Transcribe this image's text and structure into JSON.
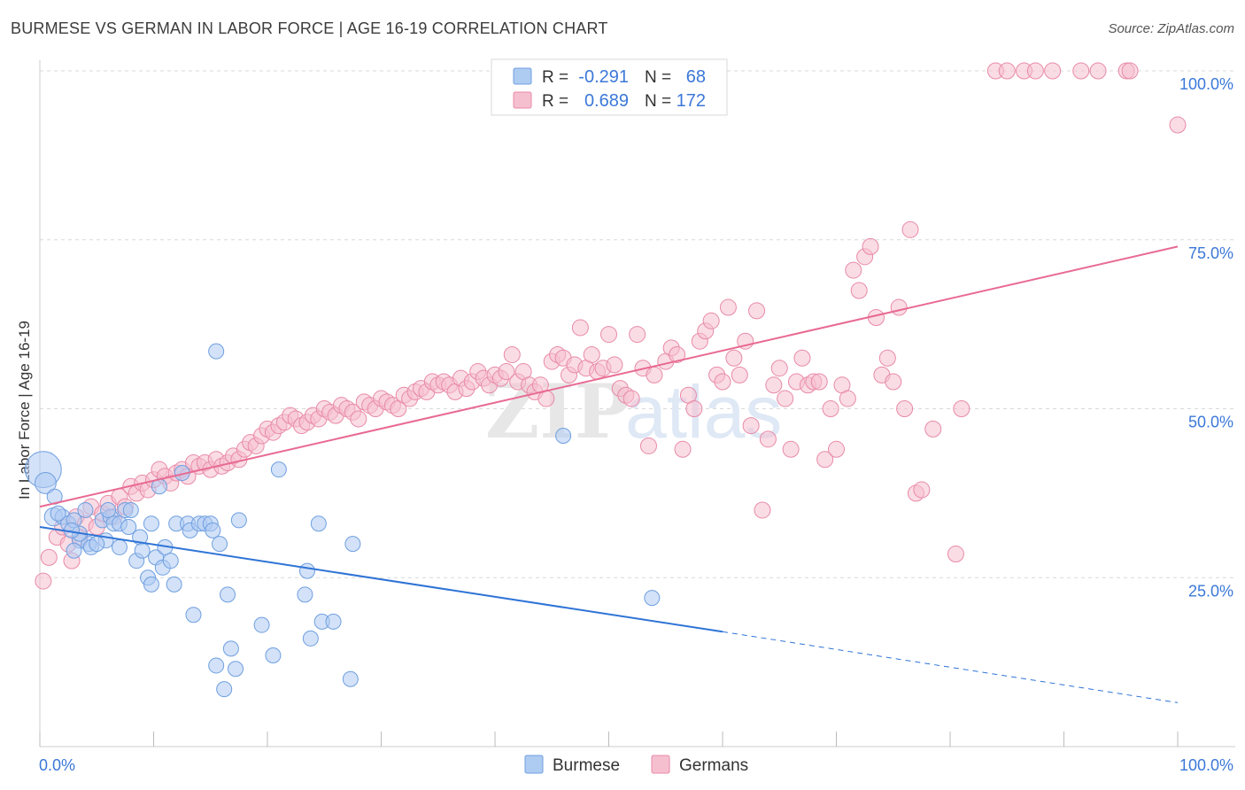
{
  "title": "BURMESE VS GERMAN IN LABOR FORCE | AGE 16-19 CORRELATION CHART",
  "source": "Source: ZipAtlas.com",
  "watermark": "ZIPatlas",
  "colors": {
    "blue_fill": "#aecbf2",
    "blue_stroke": "#6f9fe0",
    "blue_line": "#2f74d6",
    "pink_fill": "#f6bfd0",
    "pink_stroke": "#e88aa8",
    "pink_line": "#e86a92",
    "value_text": "#3b78d8",
    "grid": "#d9d9d9"
  },
  "legend": {
    "rows": [
      {
        "r_label": "R =",
        "r_value": "-0.291",
        "n_label": "N =",
        "n_value": "68"
      },
      {
        "r_label": "R =",
        "r_value": "0.689",
        "n_label": "N =",
        "n_value": "172"
      }
    ]
  },
  "bottom_legend": [
    "Burmese",
    "Germans"
  ],
  "chart_data": {
    "type": "scatter",
    "title": "BURMESE VS GERMAN IN LABOR FORCE | AGE 16-19 CORRELATION CHART",
    "xlabel": "",
    "ylabel": "In Labor Force | Age 16-19",
    "xlim": [
      0,
      100
    ],
    "ylim": [
      0,
      103
    ],
    "x_tick_labels": [
      "0.0%",
      "100.0%"
    ],
    "y_tick_labels": [
      "25.0%",
      "50.0%",
      "75.0%",
      "100.0%"
    ],
    "y_ticks": [
      25,
      50,
      75,
      100
    ],
    "grid": true,
    "legend_position": "top-center",
    "series": [
      {
        "name": "Burmese",
        "r": -0.291,
        "n": 68,
        "trend": {
          "x0": 0,
          "y0": 32.5,
          "x1": 60,
          "y1": 17.0,
          "dashed_to": {
            "x": 100,
            "y": 6.5
          }
        },
        "points": [
          [
            0.3,
            41.0,
            2.4
          ],
          [
            0.5,
            39.0,
            1.4
          ],
          [
            1.3,
            37.0,
            1.0
          ],
          [
            1.2,
            34.0,
            1.2
          ],
          [
            2.0,
            34.0,
            1.0
          ],
          [
            2.5,
            33.0,
            1.0
          ],
          [
            3.0,
            33.5,
            1.0
          ],
          [
            3.5,
            30.5,
            1.0
          ],
          [
            4.0,
            35.0,
            1.0
          ],
          [
            4.3,
            30.0,
            1.0
          ],
          [
            3.0,
            29.0,
            1.0
          ],
          [
            4.5,
            29.5,
            1.0
          ],
          [
            5.5,
            33.5,
            1.0
          ],
          [
            5.8,
            30.5,
            1.0
          ],
          [
            6.2,
            34.0,
            1.0
          ],
          [
            6.5,
            33.0,
            1.0
          ],
          [
            7.0,
            33.0,
            1.0
          ],
          [
            7.0,
            29.5,
            1.0
          ],
          [
            7.5,
            35.0,
            1.0
          ],
          [
            8.5,
            27.5,
            1.0
          ],
          [
            8.8,
            31.0,
            1.0
          ],
          [
            9.0,
            29.0,
            1.0
          ],
          [
            9.5,
            25.0,
            1.0
          ],
          [
            9.8,
            24.0,
            1.0
          ],
          [
            10.2,
            28.0,
            1.0
          ],
          [
            10.5,
            38.5,
            1.0
          ],
          [
            10.8,
            26.5,
            1.0
          ],
          [
            11.0,
            29.5,
            1.0
          ],
          [
            11.5,
            27.5,
            1.0
          ],
          [
            11.8,
            24.0,
            1.0
          ],
          [
            12.0,
            33.0,
            1.0
          ],
          [
            12.5,
            40.5,
            1.0
          ],
          [
            13.0,
            33.0,
            1.0
          ],
          [
            13.2,
            32.0,
            1.0
          ],
          [
            13.5,
            19.5,
            1.0
          ],
          [
            14.0,
            33.0,
            1.0
          ],
          [
            14.5,
            33.0,
            1.0
          ],
          [
            15.0,
            33.0,
            1.0
          ],
          [
            15.2,
            32.0,
            1.0
          ],
          [
            15.5,
            58.5,
            1.0
          ],
          [
            15.5,
            12.0,
            1.0
          ],
          [
            15.8,
            30.0,
            1.0
          ],
          [
            16.2,
            8.5,
            1.0
          ],
          [
            16.5,
            22.5,
            1.0
          ],
          [
            16.8,
            14.5,
            1.0
          ],
          [
            17.2,
            11.5,
            1.0
          ],
          [
            17.5,
            33.5,
            1.0
          ],
          [
            19.5,
            18.0,
            1.0
          ],
          [
            20.5,
            13.5,
            1.0
          ],
          [
            21.0,
            41.0,
            1.0
          ],
          [
            23.5,
            26.0,
            1.0
          ],
          [
            23.3,
            22.5,
            1.0
          ],
          [
            23.8,
            16.0,
            1.0
          ],
          [
            24.5,
            33.0,
            1.0
          ],
          [
            24.8,
            18.5,
            1.0
          ],
          [
            25.8,
            18.5,
            1.0
          ],
          [
            27.5,
            30.0,
            1.0
          ],
          [
            27.3,
            10.0,
            1.0
          ],
          [
            46.0,
            46.0,
            1.0
          ],
          [
            53.8,
            22.0,
            1.0
          ],
          [
            3.5,
            31.5,
            1.0
          ],
          [
            5.0,
            30.0,
            1.0
          ],
          [
            7.8,
            32.5,
            1.0
          ],
          [
            9.8,
            33.0,
            1.0
          ],
          [
            1.6,
            34.5,
            1.0
          ],
          [
            2.8,
            32.0,
            1.0
          ],
          [
            6.0,
            35.0,
            1.0
          ],
          [
            8.0,
            35.0,
            1.0
          ]
        ]
      },
      {
        "name": "Germans",
        "r": 0.689,
        "n": 172,
        "trend": {
          "x0": 0,
          "y0": 35.5,
          "x1": 100,
          "y1": 74.0
        },
        "points": [
          [
            0.3,
            24.5
          ],
          [
            0.8,
            28.0
          ],
          [
            1.5,
            31.0
          ],
          [
            2.0,
            32.5
          ],
          [
            2.5,
            30.0
          ],
          [
            2.8,
            27.5
          ],
          [
            3.2,
            34.0
          ],
          [
            3.5,
            31.0
          ],
          [
            4.0,
            33.0
          ],
          [
            4.5,
            35.5
          ],
          [
            5.0,
            32.5
          ],
          [
            5.5,
            34.5
          ],
          [
            6.0,
            36.0
          ],
          [
            6.5,
            34.0
          ],
          [
            7.0,
            37.0
          ],
          [
            7.5,
            35.5
          ],
          [
            8.0,
            38.5
          ],
          [
            8.5,
            37.5
          ],
          [
            9.0,
            39.0
          ],
          [
            9.5,
            38.0
          ],
          [
            10.0,
            39.5
          ],
          [
            10.5,
            41.0
          ],
          [
            11.0,
            40.0
          ],
          [
            11.5,
            39.0
          ],
          [
            12.0,
            40.5
          ],
          [
            12.5,
            41.0
          ],
          [
            13.0,
            40.0
          ],
          [
            13.5,
            42.0
          ],
          [
            14.0,
            41.5
          ],
          [
            14.5,
            42.0
          ],
          [
            15.0,
            41.0
          ],
          [
            15.5,
            42.5
          ],
          [
            16.0,
            41.5
          ],
          [
            16.5,
            42.0
          ],
          [
            17.0,
            43.0
          ],
          [
            17.5,
            42.5
          ],
          [
            18.0,
            44.0
          ],
          [
            18.5,
            45.0
          ],
          [
            19.0,
            44.5
          ],
          [
            19.5,
            46.0
          ],
          [
            20.0,
            47.0
          ],
          [
            20.5,
            46.5
          ],
          [
            21.0,
            47.5
          ],
          [
            21.5,
            48.0
          ],
          [
            22.0,
            49.0
          ],
          [
            22.5,
            48.5
          ],
          [
            23.0,
            47.5
          ],
          [
            23.5,
            48.0
          ],
          [
            24.0,
            49.0
          ],
          [
            24.5,
            48.5
          ],
          [
            25.0,
            50.0
          ],
          [
            25.5,
            49.5
          ],
          [
            26.0,
            49.0
          ],
          [
            26.5,
            50.5
          ],
          [
            27.0,
            50.0
          ],
          [
            27.5,
            49.5
          ],
          [
            28.0,
            48.5
          ],
          [
            28.5,
            51.0
          ],
          [
            29.0,
            50.5
          ],
          [
            29.5,
            50.0
          ],
          [
            30.0,
            51.5
          ],
          [
            30.5,
            51.0
          ],
          [
            31.0,
            50.5
          ],
          [
            31.5,
            50.0
          ],
          [
            32.0,
            52.0
          ],
          [
            32.5,
            51.5
          ],
          [
            33.0,
            52.5
          ],
          [
            33.5,
            53.0
          ],
          [
            34.0,
            52.5
          ],
          [
            34.5,
            54.0
          ],
          [
            35.0,
            53.5
          ],
          [
            35.5,
            54.0
          ],
          [
            36.0,
            53.5
          ],
          [
            36.5,
            52.5
          ],
          [
            37.0,
            54.5
          ],
          [
            37.5,
            53.0
          ],
          [
            38.0,
            54.0
          ],
          [
            38.5,
            55.5
          ],
          [
            39.0,
            54.5
          ],
          [
            39.5,
            53.5
          ],
          [
            40.0,
            55.0
          ],
          [
            40.5,
            54.5
          ],
          [
            41.0,
            55.5
          ],
          [
            41.5,
            58.0
          ],
          [
            42.0,
            54.0
          ],
          [
            42.5,
            55.5
          ],
          [
            43.0,
            53.5
          ],
          [
            43.5,
            52.5
          ],
          [
            44.0,
            53.5
          ],
          [
            44.5,
            51.5
          ],
          [
            45.0,
            57.0
          ],
          [
            45.5,
            58.0
          ],
          [
            46.0,
            57.5
          ],
          [
            46.5,
            55.0
          ],
          [
            47.0,
            56.5
          ],
          [
            47.5,
            62.0
          ],
          [
            48.0,
            56.0
          ],
          [
            48.5,
            58.0
          ],
          [
            49.0,
            55.5
          ],
          [
            49.5,
            56.0
          ],
          [
            50.0,
            61.0
          ],
          [
            50.5,
            56.5
          ],
          [
            51.0,
            53.0
          ],
          [
            51.5,
            52.0
          ],
          [
            52.0,
            51.5
          ],
          [
            52.5,
            61.0
          ],
          [
            53.0,
            56.0
          ],
          [
            53.5,
            44.5
          ],
          [
            54.0,
            55.0
          ],
          [
            55.0,
            57.0
          ],
          [
            55.5,
            59.0
          ],
          [
            56.0,
            58.0
          ],
          [
            56.5,
            44.0
          ],
          [
            57.0,
            52.0
          ],
          [
            57.5,
            50.0
          ],
          [
            58.0,
            60.0
          ],
          [
            58.5,
            61.5
          ],
          [
            59.0,
            63.0
          ],
          [
            59.5,
            55.0
          ],
          [
            60.0,
            54.0
          ],
          [
            60.5,
            65.0
          ],
          [
            61.0,
            57.5
          ],
          [
            61.5,
            55.0
          ],
          [
            62.0,
            60.0
          ],
          [
            62.5,
            47.5
          ],
          [
            63.0,
            64.5
          ],
          [
            63.5,
            35.0
          ],
          [
            64.0,
            45.5
          ],
          [
            64.5,
            53.5
          ],
          [
            65.0,
            56.0
          ],
          [
            65.5,
            51.5
          ],
          [
            66.0,
            44.0
          ],
          [
            66.5,
            54.0
          ],
          [
            67.0,
            57.5
          ],
          [
            67.5,
            53.5
          ],
          [
            68.0,
            54.0
          ],
          [
            68.5,
            54.0
          ],
          [
            69.0,
            42.5
          ],
          [
            69.5,
            50.0
          ],
          [
            70.0,
            44.0
          ],
          [
            70.5,
            53.5
          ],
          [
            71.0,
            51.5
          ],
          [
            71.5,
            70.5
          ],
          [
            72.0,
            67.5
          ],
          [
            72.5,
            72.5
          ],
          [
            73.0,
            74.0
          ],
          [
            73.5,
            63.5
          ],
          [
            74.0,
            55.0
          ],
          [
            74.5,
            57.5
          ],
          [
            75.0,
            54.0
          ],
          [
            75.5,
            65.0
          ],
          [
            76.0,
            50.0
          ],
          [
            76.5,
            76.5
          ],
          [
            77.0,
            37.5
          ],
          [
            77.5,
            38.0
          ],
          [
            78.5,
            47.0
          ],
          [
            81.0,
            50.0
          ],
          [
            80.5,
            28.5
          ],
          [
            84.0,
            100.0
          ],
          [
            85.0,
            100.0
          ],
          [
            86.5,
            100.0
          ],
          [
            87.5,
            100.0
          ],
          [
            89.0,
            100.0
          ],
          [
            91.5,
            100.0
          ],
          [
            93.0,
            100.0
          ],
          [
            95.5,
            100.0
          ],
          [
            95.8,
            100.0
          ],
          [
            100.0,
            92.0
          ]
        ]
      }
    ]
  }
}
